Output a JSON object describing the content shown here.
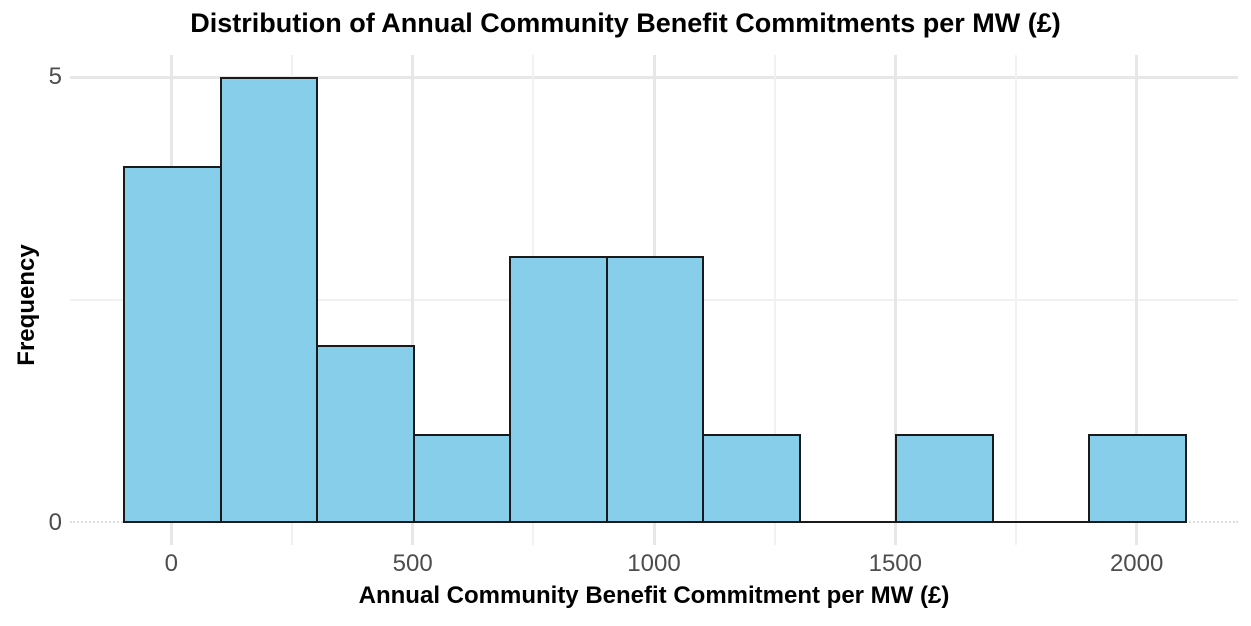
{
  "chart_data": {
    "type": "bar",
    "variant": "histogram",
    "title": "Distribution of Annual Community Benefit Commitments per MW (£)",
    "xlabel": "Annual Community Benefit Commitment per MW (£)",
    "ylabel": "Frequency",
    "bin_edges": [
      -100,
      100,
      300,
      500,
      700,
      900,
      1100,
      1300,
      1500,
      1700,
      1900,
      2100
    ],
    "counts": [
      4,
      5,
      2,
      1,
      3,
      3,
      1,
      0,
      1,
      0,
      1
    ],
    "x_major_ticks": [
      0,
      500,
      1000,
      1500,
      2000
    ],
    "x_major_tick_labels": [
      "0",
      "500",
      "1000",
      "1500",
      "2000"
    ],
    "x_minor_ticks": [
      250,
      750,
      1250,
      1750
    ],
    "y_major_ticks": [
      0,
      5
    ],
    "y_major_tick_labels": [
      "0",
      "5"
    ],
    "y_minor_ticks": [
      2.5
    ],
    "xlim": [
      -210,
      2210
    ],
    "ylim": [
      0,
      5.25
    ],
    "grid": true,
    "legend": false,
    "colors": {
      "bar_fill": "#87CEEB",
      "bar_border": "#1A1A1A",
      "grid_major": "#E7E7E7",
      "grid_minor": "#F1F1F1",
      "zero_line": "#DEDEDE",
      "tick_label": "#4D4D4D",
      "text": "#000000",
      "background": "#FFFFFF"
    }
  }
}
